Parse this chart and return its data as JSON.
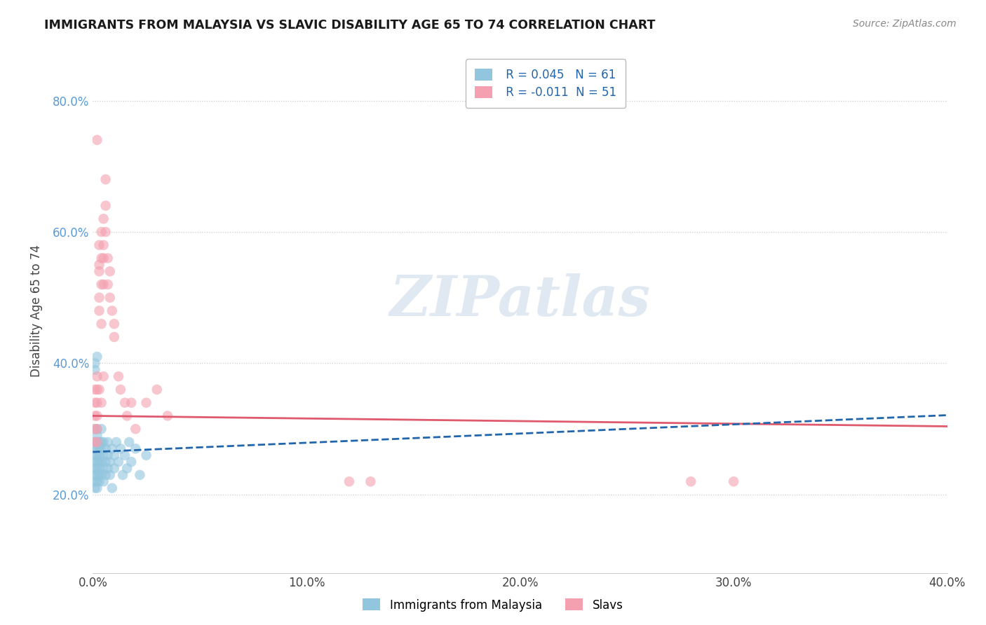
{
  "title": "IMMIGRANTS FROM MALAYSIA VS SLAVIC DISABILITY AGE 65 TO 74 CORRELATION CHART",
  "source_text": "Source: ZipAtlas.com",
  "ylabel": "Disability Age 65 to 74",
  "legend_label_1": "Immigrants from Malaysia",
  "legend_label_2": "Slavs",
  "r1": 0.045,
  "n1": 61,
  "r2": -0.011,
  "n2": 51,
  "color1": "#92c5de",
  "color2": "#f4a0b0",
  "trend1_color": "#2166ac",
  "trend2_color": "#e05a6e",
  "xlim": [
    0.0,
    0.4
  ],
  "ylim": [
    0.08,
    0.88
  ],
  "x_ticks": [
    0.0,
    0.1,
    0.2,
    0.3,
    0.4
  ],
  "x_tick_labels": [
    "0.0%",
    "10.0%",
    "20.0%",
    "30.0%",
    "40.0%"
  ],
  "y_ticks": [
    0.2,
    0.4,
    0.6,
    0.8
  ],
  "y_tick_labels": [
    "20.0%",
    "40.0%",
    "60.0%",
    "80.0%"
  ],
  "watermark": "ZIPatlas",
  "background_color": "#ffffff",
  "scatter1_x": [
    0.001,
    0.001,
    0.001,
    0.001,
    0.001,
    0.001,
    0.001,
    0.001,
    0.001,
    0.002,
    0.002,
    0.002,
    0.002,
    0.002,
    0.002,
    0.002,
    0.002,
    0.002,
    0.002,
    0.003,
    0.003,
    0.003,
    0.003,
    0.003,
    0.003,
    0.003,
    0.004,
    0.004,
    0.004,
    0.004,
    0.004,
    0.005,
    0.005,
    0.005,
    0.005,
    0.006,
    0.006,
    0.006,
    0.007,
    0.007,
    0.007,
    0.008,
    0.008,
    0.009,
    0.009,
    0.01,
    0.01,
    0.011,
    0.012,
    0.013,
    0.014,
    0.015,
    0.016,
    0.017,
    0.018,
    0.02,
    0.022,
    0.025,
    0.001,
    0.001,
    0.002
  ],
  "scatter1_y": [
    0.24,
    0.26,
    0.28,
    0.22,
    0.3,
    0.27,
    0.25,
    0.23,
    0.21,
    0.25,
    0.27,
    0.29,
    0.24,
    0.22,
    0.28,
    0.26,
    0.23,
    0.21,
    0.3,
    0.26,
    0.28,
    0.24,
    0.22,
    0.25,
    0.27,
    0.23,
    0.28,
    0.25,
    0.27,
    0.23,
    0.3,
    0.26,
    0.24,
    0.28,
    0.22,
    0.27,
    0.25,
    0.23,
    0.26,
    0.24,
    0.28,
    0.25,
    0.23,
    0.27,
    0.21,
    0.26,
    0.24,
    0.28,
    0.25,
    0.27,
    0.23,
    0.26,
    0.24,
    0.28,
    0.25,
    0.27,
    0.23,
    0.26,
    0.39,
    0.4,
    0.41
  ],
  "scatter2_x": [
    0.001,
    0.001,
    0.001,
    0.001,
    0.001,
    0.002,
    0.002,
    0.002,
    0.002,
    0.002,
    0.002,
    0.003,
    0.003,
    0.003,
    0.003,
    0.003,
    0.004,
    0.004,
    0.004,
    0.004,
    0.005,
    0.005,
    0.005,
    0.005,
    0.006,
    0.006,
    0.006,
    0.007,
    0.007,
    0.008,
    0.008,
    0.009,
    0.01,
    0.01,
    0.012,
    0.013,
    0.015,
    0.016,
    0.018,
    0.02,
    0.025,
    0.03,
    0.035,
    0.28,
    0.3,
    0.002,
    0.003,
    0.004,
    0.005,
    0.12,
    0.13
  ],
  "scatter2_y": [
    0.3,
    0.34,
    0.28,
    0.32,
    0.36,
    0.38,
    0.34,
    0.3,
    0.32,
    0.36,
    0.28,
    0.5,
    0.55,
    0.58,
    0.54,
    0.48,
    0.56,
    0.6,
    0.52,
    0.46,
    0.58,
    0.62,
    0.56,
    0.52,
    0.64,
    0.68,
    0.6,
    0.56,
    0.52,
    0.54,
    0.5,
    0.48,
    0.46,
    0.44,
    0.38,
    0.36,
    0.34,
    0.32,
    0.34,
    0.3,
    0.34,
    0.36,
    0.32,
    0.22,
    0.22,
    0.74,
    0.36,
    0.34,
    0.38,
    0.22,
    0.22
  ],
  "trend1_intercept": 0.265,
  "trend1_slope": 0.14,
  "trend2_intercept": 0.32,
  "trend2_slope": -0.04
}
